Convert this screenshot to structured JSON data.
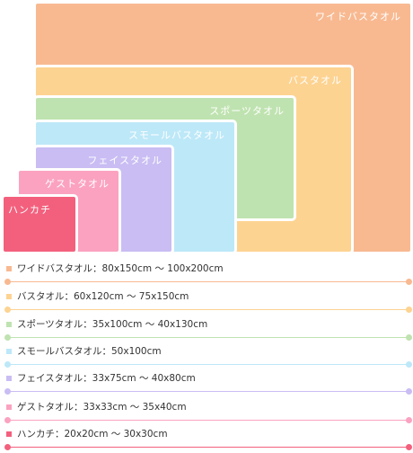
{
  "towels": [
    {
      "key": "wide",
      "label": "ワイドバスタオル",
      "color": "#f8b991"
    },
    {
      "key": "bath",
      "label": "バスタオル",
      "color": "#fdd392"
    },
    {
      "key": "sports",
      "label": "スポーツタオル",
      "color": "#bfe3b0"
    },
    {
      "key": "small",
      "label": "スモールバスタオル",
      "color": "#bde8f8"
    },
    {
      "key": "face",
      "label": "フェイスタオル",
      "color": "#c9bdf3"
    },
    {
      "key": "guest",
      "label": "ゲストタオル",
      "color": "#fba2c0"
    },
    {
      "key": "hanky",
      "label": "ハンカチ",
      "color": "#f3607d"
    }
  ],
  "legend": [
    {
      "text": "ワイドバスタオル：80x150cm 〜 100x200cm",
      "color": "#f8b991"
    },
    {
      "text": "バスタオル：60x120cm 〜 75x150cm",
      "color": "#fdd392"
    },
    {
      "text": "スポーツタオル：35x100cm 〜 40x130cm",
      "color": "#bfe3b0"
    },
    {
      "text": "スモールバスタオル：50x100cm",
      "color": "#bde8f8"
    },
    {
      "text": "フェイスタオル：33x75cm 〜 40x80cm",
      "color": "#c9bdf3"
    },
    {
      "text": "ゲストタオル：33x33cm 〜 35x40cm",
      "color": "#fba2c0"
    },
    {
      "text": "ハンカチ：20x20cm 〜 30x30cm",
      "color": "#f3607d"
    }
  ]
}
